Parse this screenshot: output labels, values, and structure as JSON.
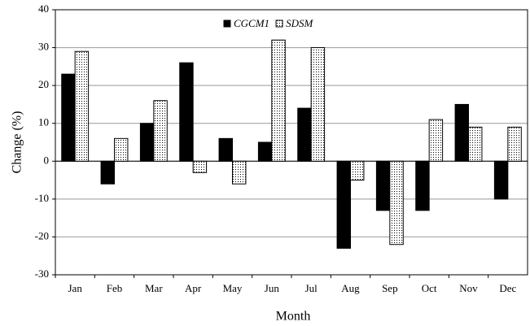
{
  "chart_data": {
    "type": "bar",
    "x_label": "Month",
    "y_label": "Change (%)",
    "categories": [
      "Jan",
      "Feb",
      "Mar",
      "Apr",
      "May",
      "Jun",
      "Jul",
      "Aug",
      "Sep",
      "Oct",
      "Nov",
      "Dec"
    ],
    "series": [
      {
        "name": "CGCM1",
        "color": "#000000",
        "fill_style": "solid",
        "values": [
          23,
          -6,
          10,
          26,
          6,
          5,
          14,
          -23,
          -13,
          -13,
          15,
          -10
        ]
      },
      {
        "name": "SDSM",
        "color": "#ffffff",
        "fill_style": "dots",
        "values": [
          29,
          6,
          16,
          -3,
          -6,
          32,
          30,
          -5,
          -22,
          11,
          9,
          9
        ]
      }
    ],
    "ylim": [
      -30,
      40
    ],
    "yticks": [
      -30,
      -20,
      -10,
      0,
      10,
      20,
      30,
      40
    ],
    "grid": true,
    "legend": "top"
  }
}
